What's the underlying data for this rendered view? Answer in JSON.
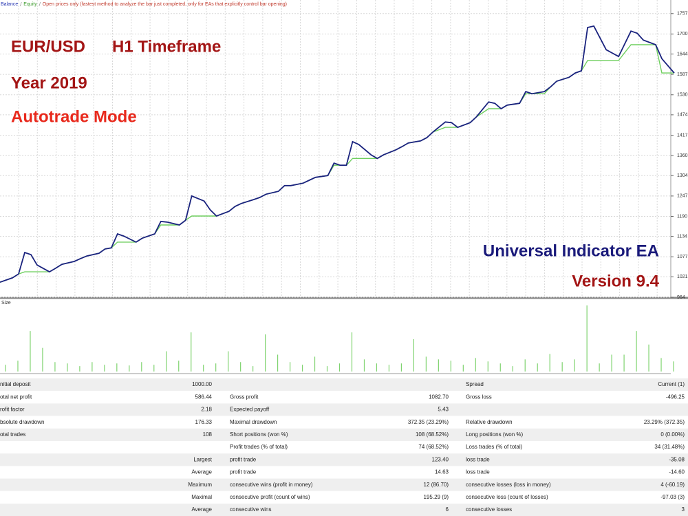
{
  "chart_data": [
    {
      "type": "line",
      "series": [
        {
          "name": "Balance",
          "color": "#1a237e",
          "values": [
            1006,
            1012,
            1018,
            1029,
            1089,
            1083,
            1054,
            1035,
            1045,
            1056,
            1064,
            1072,
            1079,
            1087,
            1099,
            1102,
            1141,
            1135,
            1118,
            1129,
            1141,
            1176,
            1174,
            1166,
            1179,
            1247,
            1233,
            1208,
            1191,
            1204,
            1218,
            1226,
            1237,
            1243,
            1252,
            1260,
            1276,
            1276,
            1283,
            1291,
            1299,
            1304,
            1339,
            1333,
            1333,
            1399,
            1391,
            1362,
            1352,
            1362,
            1376,
            1385,
            1395,
            1401,
            1410,
            1426,
            1454,
            1452,
            1439,
            1452,
            1468,
            1510,
            1506,
            1491,
            1501,
            1506,
            1539,
            1533,
            1539,
            1552,
            1568,
            1579,
            1591,
            1597,
            1718,
            1722,
            1689,
            1656,
            1637,
            1708,
            1702,
            1683,
            1670,
            1631,
            1591
          ]
        },
        {
          "name": "Equity",
          "color": "#6fcf5f",
          "values": [
            1006,
            1012,
            1018,
            1029,
            1035,
            1035,
            1035,
            1035,
            1045,
            1056,
            1064,
            1072,
            1079,
            1087,
            1099,
            1102,
            1118,
            1118,
            1118,
            1129,
            1141,
            1166,
            1166,
            1166,
            1179,
            1191,
            1191,
            1191,
            1191,
            1204,
            1218,
            1226,
            1237,
            1243,
            1252,
            1260,
            1276,
            1276,
            1283,
            1291,
            1299,
            1304,
            1333,
            1333,
            1333,
            1352,
            1352,
            1352,
            1352,
            1362,
            1376,
            1385,
            1395,
            1401,
            1410,
            1426,
            1439,
            1439,
            1439,
            1452,
            1468,
            1491,
            1491,
            1491,
            1501,
            1506,
            1533,
            1533,
            1533,
            1552,
            1568,
            1579,
            1591,
            1597,
            1626,
            1626,
            1626,
            1626,
            1626,
            1670,
            1670,
            1670,
            1670,
            1591,
            1591
          ]
        }
      ],
      "x": [
        0,
        1,
        2,
        3,
        4,
        5,
        6,
        8,
        9,
        10,
        12,
        13,
        14,
        16,
        17,
        18,
        19,
        20,
        22,
        23,
        25,
        26,
        27,
        29,
        30,
        31,
        33,
        34,
        35,
        37,
        38,
        39,
        41,
        42,
        43,
        45,
        46,
        47,
        49,
        50,
        51,
        53,
        54,
        55,
        56,
        57,
        58,
        60,
        61,
        62,
        64,
        65,
        66,
        68,
        69,
        70,
        72,
        73,
        74,
        76,
        77,
        79,
        80,
        81,
        82,
        84,
        85,
        86,
        88,
        89,
        90,
        92,
        93,
        94,
        95,
        96,
        97,
        98,
        100,
        102,
        103,
        104,
        106,
        107,
        109
      ],
      "xlim": [
        0,
        109
      ],
      "ylim": [
        964,
        1795
      ],
      "yticks": [
        964,
        1021,
        1077,
        1134,
        1190,
        1247,
        1304,
        1360,
        1417,
        1474,
        1530,
        1587,
        1644,
        1700,
        1757
      ],
      "grid": true,
      "note": "Open prices only (fastest method to analyze the bar just completed, only for EAs that explicitly control bar opening)",
      "annotations": [
        {
          "text": "EUR/USD",
          "color": "#a31515"
        },
        {
          "text": "H1 Timeframe",
          "color": "#a31515"
        },
        {
          "text": "Year 2019",
          "color": "#a31515"
        },
        {
          "text": "Autotrade Mode",
          "color": "#e8291c"
        },
        {
          "text": "Universal Indicator EA",
          "color": "#1a1a7a"
        },
        {
          "text": "Version 9.4",
          "color": "#a31515"
        }
      ]
    },
    {
      "type": "bar",
      "title": "Size",
      "color": "#7fd36f",
      "x": [
        0,
        2,
        4,
        6,
        8,
        10,
        12,
        14,
        16,
        18,
        20,
        22,
        24,
        26,
        28,
        30,
        32,
        34,
        36,
        38,
        40,
        42,
        44,
        46,
        48,
        50,
        52,
        54,
        56,
        58,
        60,
        62,
        64,
        66,
        68,
        70,
        72,
        74,
        76,
        78,
        80,
        82,
        84,
        86,
        88,
        90,
        92,
        94,
        96,
        98,
        100,
        102,
        104,
        106,
        108
      ],
      "values": [
        10,
        16,
        60,
        35,
        14,
        12,
        8,
        14,
        10,
        12,
        9,
        14,
        10,
        30,
        16,
        58,
        10,
        12,
        30,
        14,
        8,
        55,
        25,
        14,
        10,
        22,
        8,
        12,
        58,
        18,
        12,
        10,
        12,
        48,
        22,
        18,
        16,
        10,
        20,
        15,
        12,
        8,
        18,
        12,
        26,
        14,
        18,
        98,
        12,
        25,
        25,
        60,
        40,
        20,
        15
      ],
      "xlim": [
        0,
        109
      ],
      "ylim": [
        0,
        105
      ]
    }
  ],
  "table": {
    "rows": [
      [
        "nitial deposit",
        "1000.00",
        null,
        null,
        "Spread",
        "Current (1)"
      ],
      [
        "otal net profit",
        "586.44",
        "Gross profit",
        "1082.70",
        "Gross loss",
        "-496.25"
      ],
      [
        "rofit factor",
        "2.18",
        "Expected payoff",
        "5.43",
        null,
        null
      ],
      [
        "bsolute drawdown",
        "176.33",
        "Maximal drawdown",
        "372.35 (23.29%)",
        "Relative drawdown",
        "23.29% (372.35)"
      ],
      [
        "otal trades",
        "108",
        "Short positions (won %)",
        "108 (68.52%)",
        "Long positions (won %)",
        "0 (0.00%)"
      ],
      [
        null,
        null,
        "Profit trades (% of total)",
        "74 (68.52%)",
        "Loss trades (% of total)",
        "34 (31.48%)"
      ],
      [
        null,
        "Largest",
        "profit trade",
        "123.40",
        "loss trade",
        "-35.08"
      ],
      [
        null,
        "Average",
        "profit trade",
        "14.63",
        "loss trade",
        "-14.60"
      ],
      [
        null,
        "Maximum",
        "consecutive wins (profit in money)",
        "12 (86.70)",
        "consecutive losses (loss in money)",
        "4 (-60.19)"
      ],
      [
        null,
        "Maximal",
        "consecutive profit (count of wins)",
        "195.29 (9)",
        "consecutive loss (count of losses)",
        "-97.03 (3)"
      ],
      [
        null,
        "Average",
        "consecutive wins",
        "6",
        "consecutive losses",
        "3"
      ]
    ]
  }
}
